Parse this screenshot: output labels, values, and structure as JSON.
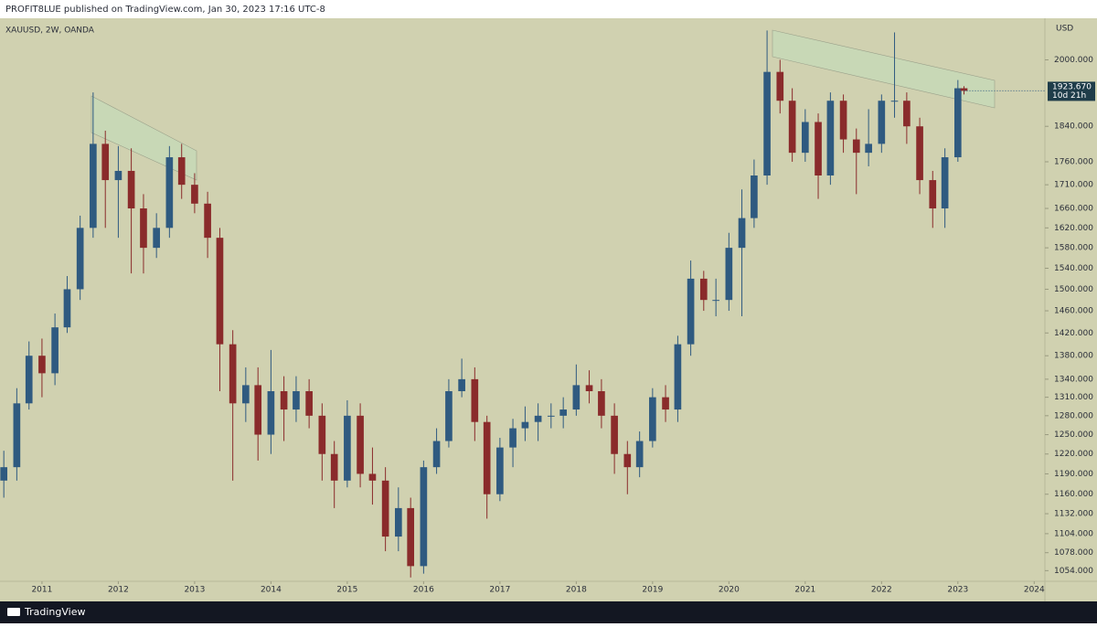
{
  "header": {
    "title": "PROFIT8LUE published on TradingView.com, Jan 30, 2023 17:16 UTC-8"
  },
  "footer": {
    "brand": "TradingView"
  },
  "chart_data": {
    "type": "candlestick",
    "symbol": "XAUUSD, 2W, OANDA",
    "y_unit": "USD",
    "log_scale": true,
    "grid": false,
    "up_color": "#2f5a80",
    "down_color": "#8a2b2b",
    "background": "#d0d1b0",
    "x": [
      2010.5,
      2010.67,
      2010.83,
      2011,
      2011.17,
      2011.33,
      2011.5,
      2011.67,
      2011.83,
      2012,
      2012.17,
      2012.33,
      2012.5,
      2012.67,
      2012.83,
      2013,
      2013.17,
      2013.33,
      2013.5,
      2013.67,
      2013.83,
      2014,
      2014.17,
      2014.33,
      2014.5,
      2014.67,
      2014.83,
      2015,
      2015.17,
      2015.33,
      2015.5,
      2015.67,
      2015.83,
      2016,
      2016.17,
      2016.33,
      2016.5,
      2016.67,
      2016.83,
      2017,
      2017.17,
      2017.33,
      2017.5,
      2017.67,
      2017.83,
      2018,
      2018.17,
      2018.33,
      2018.5,
      2018.67,
      2018.83,
      2019,
      2019.17,
      2019.33,
      2019.5,
      2019.67,
      2019.83,
      2020,
      2020.17,
      2020.33,
      2020.5,
      2020.67,
      2020.83,
      2021,
      2021.17,
      2021.33,
      2021.5,
      2021.67,
      2021.83,
      2022,
      2022.17,
      2022.33,
      2022.5,
      2022.67,
      2022.83,
      2023,
      2023.08
    ],
    "open": [
      1180,
      1200,
      1300,
      1380,
      1350,
      1430,
      1500,
      1620,
      1800,
      1720,
      1740,
      1660,
      1580,
      1620,
      1770,
      1710,
      1670,
      1600,
      1400,
      1300,
      1330,
      1250,
      1320,
      1290,
      1320,
      1280,
      1220,
      1180,
      1280,
      1190,
      1180,
      1100,
      1140,
      1060,
      1200,
      1240,
      1320,
      1340,
      1270,
      1160,
      1230,
      1260,
      1270,
      1280,
      1280,
      1290,
      1330,
      1320,
      1280,
      1220,
      1200,
      1240,
      1310,
      1290,
      1400,
      1520,
      1480,
      1480,
      1580,
      1640,
      1730,
      1970,
      1900,
      1780,
      1850,
      1730,
      1900,
      1810,
      1780,
      1800,
      1900,
      1900,
      1840,
      1720,
      1660,
      1770,
      1930
    ],
    "high": [
      1225,
      1325,
      1405,
      1410,
      1455,
      1525,
      1645,
      1920,
      1830,
      1795,
      1790,
      1690,
      1650,
      1795,
      1800,
      1735,
      1695,
      1620,
      1425,
      1360,
      1360,
      1390,
      1345,
      1345,
      1340,
      1300,
      1240,
      1305,
      1300,
      1230,
      1200,
      1170,
      1155,
      1210,
      1260,
      1340,
      1375,
      1360,
      1280,
      1245,
      1275,
      1295,
      1300,
      1300,
      1310,
      1365,
      1355,
      1340,
      1300,
      1240,
      1255,
      1325,
      1330,
      1415,
      1555,
      1535,
      1520,
      1610,
      1700,
      1765,
      2075,
      2000,
      1930,
      1880,
      1870,
      1920,
      1915,
      1835,
      1880,
      1915,
      2070,
      1920,
      1860,
      1740,
      1790,
      1950,
      1935
    ],
    "low": [
      1155,
      1180,
      1290,
      1310,
      1330,
      1420,
      1480,
      1600,
      1620,
      1600,
      1530,
      1530,
      1560,
      1600,
      1680,
      1650,
      1560,
      1320,
      1180,
      1270,
      1210,
      1220,
      1240,
      1270,
      1260,
      1180,
      1140,
      1170,
      1170,
      1145,
      1080,
      1080,
      1045,
      1050,
      1190,
      1230,
      1310,
      1240,
      1125,
      1150,
      1200,
      1240,
      1240,
      1260,
      1260,
      1280,
      1300,
      1260,
      1190,
      1160,
      1185,
      1230,
      1270,
      1270,
      1380,
      1460,
      1450,
      1460,
      1450,
      1620,
      1710,
      1870,
      1760,
      1760,
      1680,
      1710,
      1780,
      1690,
      1750,
      1780,
      1860,
      1800,
      1690,
      1620,
      1620,
      1760,
      1915
    ],
    "close": [
      1200,
      1300,
      1380,
      1350,
      1430,
      1500,
      1620,
      1800,
      1720,
      1740,
      1660,
      1580,
      1620,
      1770,
      1710,
      1670,
      1600,
      1400,
      1300,
      1330,
      1250,
      1320,
      1290,
      1320,
      1280,
      1220,
      1180,
      1280,
      1190,
      1180,
      1100,
      1140,
      1060,
      1200,
      1240,
      1320,
      1340,
      1270,
      1160,
      1230,
      1260,
      1270,
      1280,
      1280,
      1290,
      1330,
      1320,
      1280,
      1220,
      1200,
      1240,
      1310,
      1290,
      1400,
      1520,
      1480,
      1480,
      1580,
      1640,
      1730,
      1970,
      1900,
      1780,
      1850,
      1730,
      1900,
      1810,
      1780,
      1800,
      1900,
      1900,
      1840,
      1720,
      1660,
      1770,
      1930,
      1923.67
    ],
    "xlim": [
      2010.45,
      2024.14
    ],
    "xticks": [
      2011,
      2012,
      2013,
      2014,
      2015,
      2016,
      2017,
      2018,
      2019,
      2020,
      2021,
      2022,
      2023,
      2024
    ],
    "ylim": [
      1040,
      2107
    ],
    "yticks": [
      {
        "value": 2000,
        "label": "2000.000"
      },
      {
        "value": 1840,
        "label": "1840.000"
      },
      {
        "value": 1760,
        "label": "1760.000"
      },
      {
        "value": 1710,
        "label": "1710.000"
      },
      {
        "value": 1660,
        "label": "1660.000"
      },
      {
        "value": 1620,
        "label": "1620.000"
      },
      {
        "value": 1580,
        "label": "1580.000"
      },
      {
        "value": 1540,
        "label": "1540.000"
      },
      {
        "value": 1500,
        "label": "1500.000"
      },
      {
        "value": 1460,
        "label": "1460.000"
      },
      {
        "value": 1420,
        "label": "1420.000"
      },
      {
        "value": 1380,
        "label": "1380.000"
      },
      {
        "value": 1340,
        "label": "1340.000"
      },
      {
        "value": 1310,
        "label": "1310.000"
      },
      {
        "value": 1280,
        "label": "1280.000"
      },
      {
        "value": 1250,
        "label": "1250.000"
      },
      {
        "value": 1220,
        "label": "1220.000"
      },
      {
        "value": 1190,
        "label": "1190.000"
      },
      {
        "value": 1160,
        "label": "1160.000"
      },
      {
        "value": 1132,
        "label": "1132.000"
      },
      {
        "value": 1104,
        "label": "1104.000"
      },
      {
        "value": 1078,
        "label": "1078.000"
      },
      {
        "value": 1054,
        "label": "1054.000"
      }
    ],
    "last_price": {
      "value": 1923.67,
      "label": "1923.670"
    },
    "countdown": "10d 21h"
  }
}
